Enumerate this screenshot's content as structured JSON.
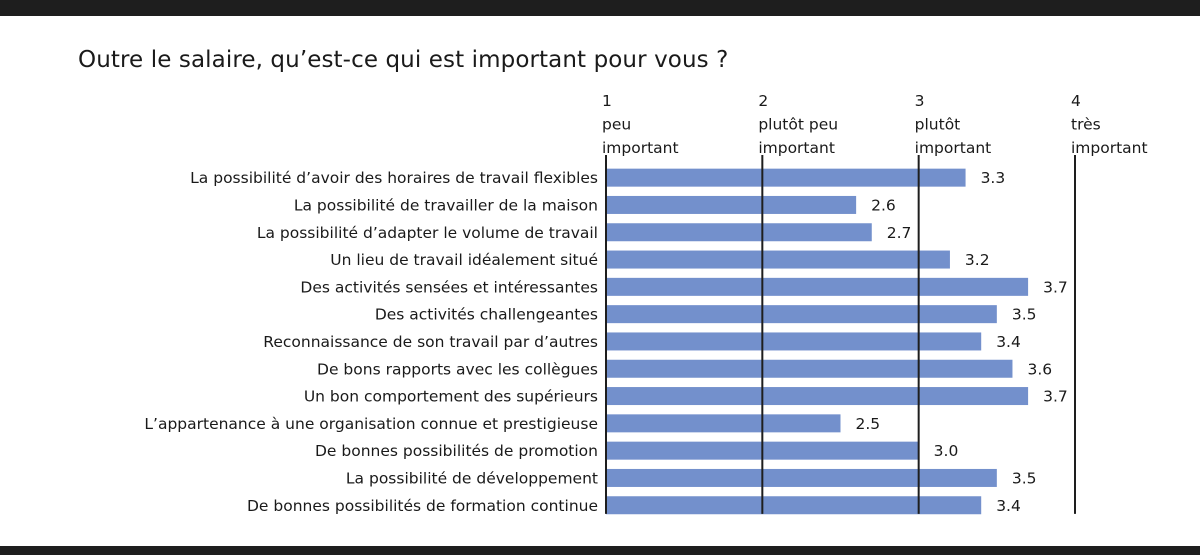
{
  "colors": {
    "bar": "#7390cc",
    "frame": "#1e1e1e",
    "text": "#1a1a1a"
  },
  "chart_data": {
    "type": "bar",
    "orientation": "horizontal",
    "title": "Outre le salaire, qu’est-ce qui est important pour vous ?",
    "xlim": [
      1,
      4
    ],
    "ticks": [
      {
        "value": 1,
        "lines": [
          "1",
          "peu",
          "important"
        ]
      },
      {
        "value": 2,
        "lines": [
          "2",
          "plutôt peu",
          "important"
        ]
      },
      {
        "value": 3,
        "lines": [
          "3",
          "plutôt",
          "important"
        ]
      },
      {
        "value": 4,
        "lines": [
          "4",
          "très",
          "important"
        ]
      }
    ],
    "categories": [
      "La possibilité d’avoir des horaires de travail flexibles",
      "La possibilité de travailler de la maison",
      "La possibilité d’adapter le volume de travail",
      "Un lieu de travail idéalement situé",
      "Des activités sensées et intéressantes",
      "Des activités challengeantes",
      "Reconnaissance de son travail par d’autres",
      "De bons rapports avec les collègues",
      "Un bon comportement des supérieurs",
      "L’appartenance à une organisation connue et prestigieuse",
      "De bonnes possibilités de promotion",
      "La possibilité de développement",
      "De bonnes possibilités de formation continue"
    ],
    "values": [
      3.3,
      2.6,
      2.7,
      3.2,
      3.7,
      3.5,
      3.4,
      3.6,
      3.7,
      2.5,
      3.0,
      3.5,
      3.4
    ],
    "value_labels": [
      "3.3",
      "2.6",
      "2.7",
      "3.2",
      "3.7",
      "3.5",
      "3.4",
      "3.6",
      "3.7",
      "2.5",
      "3.0",
      "3.5",
      "3.4"
    ]
  }
}
